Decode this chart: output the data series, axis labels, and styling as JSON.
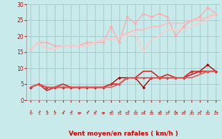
{
  "title": "",
  "xlabel": "Vent moyen/en rafales ( km/h )",
  "ylabel": "",
  "xlim_min": -0.5,
  "xlim_max": 23.5,
  "ylim": [
    0,
    30
  ],
  "yticks": [
    0,
    5,
    10,
    15,
    20,
    25,
    30
  ],
  "xticks": [
    0,
    1,
    2,
    3,
    4,
    5,
    6,
    7,
    8,
    9,
    10,
    11,
    12,
    13,
    14,
    15,
    16,
    17,
    18,
    19,
    20,
    21,
    22,
    23
  ],
  "bg_color": "#c8eaea",
  "grid_color": "#a0c8c8",
  "xlabel_color": "#cc0000",
  "tick_color": "#cc0000",
  "series": [
    {
      "x": [
        0,
        1,
        2,
        3,
        4,
        5,
        6,
        7,
        8,
        9,
        10,
        11,
        12,
        13,
        14,
        15,
        16,
        17,
        18,
        19,
        20,
        21,
        22,
        23
      ],
      "y": [
        16,
        18,
        18,
        17,
        17,
        17,
        17,
        18,
        18,
        18,
        23,
        18,
        26,
        24,
        27,
        26,
        27,
        26,
        20,
        23,
        25,
        26,
        29,
        27
      ],
      "color": "#ffaaaa",
      "marker": "D",
      "markersize": 2.0,
      "linewidth": 1.0
    },
    {
      "x": [
        0,
        1,
        2,
        3,
        4,
        5,
        6,
        7,
        8,
        9,
        10,
        11,
        12,
        13,
        14,
        15,
        16,
        17,
        18,
        19,
        20,
        21,
        22,
        23
      ],
      "y": [
        16,
        18,
        16,
        16,
        17,
        17,
        17,
        17,
        18,
        19,
        19,
        20,
        21,
        22,
        22,
        23,
        23,
        24,
        24,
        24,
        25,
        25,
        26,
        27
      ],
      "color": "#ffbbbb",
      "marker": null,
      "markersize": 0,
      "linewidth": 1.2
    },
    {
      "x": [
        0,
        1,
        2,
        3,
        4,
        5,
        6,
        7,
        8,
        9,
        10,
        11,
        12,
        13,
        14,
        15,
        16,
        17,
        18,
        19,
        20,
        21,
        22,
        23
      ],
      "y": [
        16,
        18,
        16,
        16,
        17,
        17,
        17,
        17,
        18,
        19,
        19,
        20,
        20,
        21,
        15,
        19,
        20,
        22,
        22,
        22,
        23,
        24,
        25,
        27
      ],
      "color": "#ffcccc",
      "marker": null,
      "markersize": 0,
      "linewidth": 1.2
    },
    {
      "x": [
        0,
        1,
        2,
        3,
        4,
        5,
        6,
        7,
        8,
        9,
        10,
        11,
        12,
        13,
        14,
        15,
        16,
        17,
        18,
        19,
        20,
        21,
        22,
        23
      ],
      "y": [
        4,
        5,
        4,
        4,
        4,
        4,
        4,
        4,
        4,
        4,
        5,
        7,
        7,
        7,
        4,
        7,
        7,
        7,
        7,
        7,
        9,
        9,
        11,
        9
      ],
      "color": "#aa0000",
      "marker": "D",
      "markersize": 2.0,
      "linewidth": 1.0
    },
    {
      "x": [
        0,
        1,
        2,
        3,
        4,
        5,
        6,
        7,
        8,
        9,
        10,
        11,
        12,
        13,
        14,
        15,
        16,
        17,
        18,
        19,
        20,
        21,
        22,
        23
      ],
      "y": [
        4,
        5,
        3,
        4,
        5,
        4,
        4,
        4,
        4,
        4,
        5,
        5,
        7,
        7,
        9,
        9,
        7,
        8,
        7,
        7,
        8,
        9,
        9,
        9
      ],
      "color": "#cc2222",
      "marker": null,
      "markersize": 0,
      "linewidth": 1.2
    },
    {
      "x": [
        0,
        1,
        2,
        3,
        4,
        5,
        6,
        7,
        8,
        9,
        10,
        11,
        12,
        13,
        14,
        15,
        16,
        17,
        18,
        19,
        20,
        21,
        22,
        23
      ],
      "y": [
        4,
        5,
        4,
        4,
        4,
        4,
        4,
        4,
        4,
        4,
        5,
        5,
        7,
        7,
        7,
        7,
        7,
        7,
        7,
        7,
        9,
        9,
        9,
        9
      ],
      "color": "#dd3333",
      "marker": "^",
      "markersize": 2.0,
      "linewidth": 1.0
    },
    {
      "x": [
        0,
        1,
        2,
        3,
        4,
        5,
        6,
        7,
        8,
        9,
        10,
        11,
        12,
        13,
        14,
        15,
        16,
        17,
        18,
        19,
        20,
        21,
        22,
        23
      ],
      "y": [
        4,
        5,
        4,
        4,
        4,
        4,
        4,
        4,
        4,
        4,
        4,
        5,
        7,
        7,
        7,
        7,
        7,
        7,
        7,
        7,
        7,
        8,
        9,
        9
      ],
      "color": "#ee5555",
      "marker": null,
      "markersize": 0,
      "linewidth": 1.2
    }
  ],
  "arrow_symbols": [
    "↑",
    "↗",
    "↖",
    "↖",
    "↗",
    "↗",
    "→",
    "↗",
    "↗",
    "→",
    "↗",
    "↗",
    "↗",
    "↑",
    "↗",
    "↑",
    "↗",
    "↗",
    "↖",
    "↗",
    "↑",
    "↗",
    "↑",
    "↖"
  ]
}
